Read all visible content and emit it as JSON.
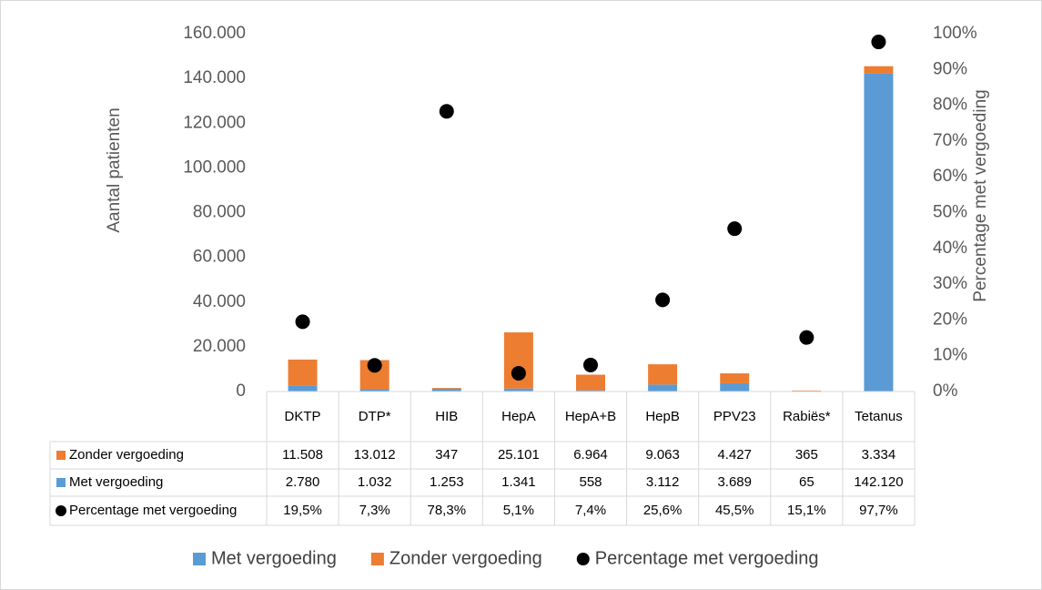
{
  "chart_data": {
    "type": "bar",
    "stacked": true,
    "categories": [
      "DKTP",
      "DTP*",
      "HIB",
      "HepA",
      "HepA+B",
      "HepB",
      "PPV23",
      "Rabiës*",
      "Tetanus"
    ],
    "y_label": "Aantal patienten",
    "y2_label": "Percentage met vergoeding",
    "ylim": [
      0,
      160000
    ],
    "yticks": [
      0,
      {
        "value": 20000,
        "label": "20.000"
      },
      {
        "value": 40000,
        "label": "40.000"
      },
      {
        "value": 60000,
        "label": "60.000"
      },
      {
        "value": 80000,
        "label": "80.000"
      },
      {
        "value": 100000,
        "label": "100.000"
      },
      {
        "value": 120000,
        "label": "120.000"
      },
      {
        "value": 140000,
        "label": "140.000"
      },
      {
        "value": 160000,
        "label": "160.000"
      }
    ],
    "y2lim": [
      0,
      100
    ],
    "y2ticks": [
      {
        "value": 0,
        "label": "0%"
      },
      {
        "value": 10,
        "label": "10%"
      },
      {
        "value": 20,
        "label": "20%"
      },
      {
        "value": 30,
        "label": "30%"
      },
      {
        "value": 40,
        "label": "40%"
      },
      {
        "value": 50,
        "label": "50%"
      },
      {
        "value": 60,
        "label": "60%"
      },
      {
        "value": 70,
        "label": "70%"
      },
      {
        "value": 80,
        "label": "80%"
      },
      {
        "value": 90,
        "label": "90%"
      },
      {
        "value": 100,
        "label": "100%"
      }
    ],
    "series": [
      {
        "name": "Met vergoeding",
        "color": "#5b9bd5",
        "values": [
          2780,
          1032,
          1253,
          1341,
          558,
          3112,
          3689,
          65,
          142120
        ],
        "value_labels": [
          "2.780",
          "1.032",
          "1.253",
          "1.341",
          "558",
          "3.112",
          "3.689",
          "65",
          "142.120"
        ]
      },
      {
        "name": "Zonder vergoeding",
        "color": "#ed7d31",
        "values": [
          11508,
          13012,
          347,
          25101,
          6964,
          9063,
          4427,
          365,
          3334
        ],
        "value_labels": [
          "11.508",
          "13.012",
          "347",
          "25.101",
          "6.964",
          "9.063",
          "4.427",
          "365",
          "3.334"
        ]
      },
      {
        "name": "Percentage met vergoeding",
        "color": "#000000",
        "type": "scatter",
        "axis": "y2",
        "values": [
          19.5,
          7.3,
          78.3,
          5.1,
          7.4,
          25.6,
          45.5,
          15.1,
          97.7
        ],
        "value_labels": [
          "19,5%",
          "7,3%",
          "78,3%",
          "5,1%",
          "7,4%",
          "25,6%",
          "45,5%",
          "15,1%",
          "97,7%"
        ]
      }
    ],
    "table_row_order": [
      1,
      0,
      2
    ]
  }
}
